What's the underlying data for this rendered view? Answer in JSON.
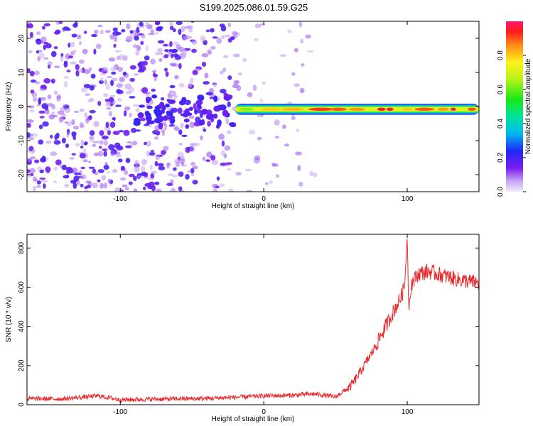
{
  "title": "S199.2025.086.01.59.G25",
  "chart_data": [
    {
      "type": "heatmap",
      "xlabel": "Height of straight line (km)",
      "ylabel": "Frequency (Hz)",
      "xlim": [
        -165,
        150
      ],
      "ylim": [
        -25,
        25
      ],
      "x_ticks": [
        "-100",
        "0",
        "100"
      ],
      "y_ticks": [
        "20",
        "10",
        "0",
        "-10",
        "-20"
      ],
      "colorbar": {
        "label": "Normalized spectral amplitude",
        "range": [
          0,
          1
        ],
        "ticks": [
          "0.0",
          "0.2",
          "0.4",
          "0.6",
          "0.8"
        ]
      },
      "description_of_values": {
        "noise_region_x": [
          -165,
          -20
        ],
        "signal_band_x": [
          -20,
          150
        ],
        "signal_band_freq_hz": [
          -1.5,
          0.5
        ],
        "peak_amplitude_near_x": [
          45,
          85,
          130
        ]
      },
      "grid": false
    },
    {
      "type": "line",
      "xlabel": "Height of straight line (km)",
      "ylabel": "SNR (10 * v/v)",
      "xlim": [
        -165,
        150
      ],
      "ylim": [
        0,
        870
      ],
      "x_ticks": [
        "-100",
        "0",
        "100"
      ],
      "y_ticks": [
        "0",
        "200",
        "400",
        "600",
        "800"
      ],
      "line_color": "#e8292b",
      "grid": false,
      "series": [
        {
          "x": [
            -165,
            -140,
            -115,
            -100,
            -80,
            -60,
            -40,
            -20,
            0,
            20,
            35,
            50,
            60,
            65,
            70,
            75,
            80,
            85,
            90,
            95,
            98,
            100,
            101,
            103,
            108,
            115,
            125,
            135,
            150
          ],
          "values": [
            30,
            30,
            45,
            25,
            28,
            30,
            32,
            38,
            45,
            48,
            55,
            40,
            90,
            140,
            200,
            260,
            330,
            400,
            470,
            540,
            600,
            860,
            500,
            620,
            670,
            680,
            660,
            640,
            620
          ]
        }
      ]
    }
  ]
}
